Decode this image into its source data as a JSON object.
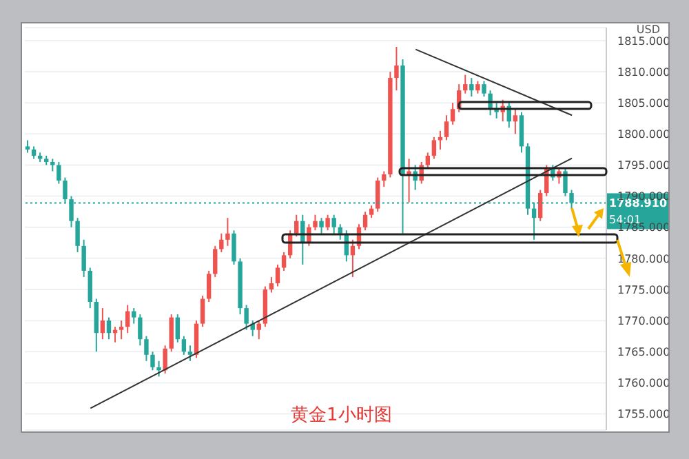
{
  "chart_data": {
    "type": "candlestick",
    "title": "黄金1小时图",
    "annotations": [
      "USD",
      "54:01"
    ],
    "categories": [
      null,
      null,
      null,
      null,
      null,
      null,
      null,
      null,
      null,
      null,
      null,
      null,
      null,
      null,
      null,
      null,
      null,
      null,
      null,
      null,
      null,
      null,
      null,
      null,
      null,
      null,
      null,
      null,
      null,
      null,
      null,
      null,
      null,
      null,
      null,
      null,
      null,
      null,
      null,
      null,
      null,
      null,
      null,
      null,
      null,
      null,
      null,
      null,
      null,
      null,
      null,
      null,
      null,
      null,
      null,
      null,
      null,
      null,
      null,
      null,
      null,
      null,
      null,
      null,
      null,
      null,
      null,
      null,
      null,
      null,
      null,
      null,
      null,
      null,
      null,
      null,
      null,
      null,
      null,
      null,
      null,
      null,
      null,
      null,
      null,
      null,
      null,
      null
    ],
    "ohlc": [
      [
        1798,
        1799,
        1797,
        1797.5
      ],
      [
        1797.5,
        1798,
        1796,
        1796.5
      ],
      [
        1796.5,
        1797,
        1795.5,
        1796
      ],
      [
        1796,
        1796.5,
        1795,
        1795.5
      ],
      [
        1795.5,
        1796,
        1794,
        1795
      ],
      [
        1795,
        1795.5,
        1792,
        1792.5
      ],
      [
        1792.5,
        1793,
        1789,
        1789.5
      ],
      [
        1789.5,
        1790,
        1785,
        1786
      ],
      [
        1786,
        1786.5,
        1781,
        1782
      ],
      [
        1782,
        1783,
        1777,
        1778
      ],
      [
        1778,
        1778.5,
        1772,
        1773
      ],
      [
        1773,
        1773.5,
        1765,
        1768
      ],
      [
        1768,
        1772,
        1767,
        1770
      ],
      [
        1770,
        1770.5,
        1767,
        1768
      ],
      [
        1768,
        1769,
        1766.5,
        1768.5
      ],
      [
        1768.5,
        1770,
        1767,
        1769
      ],
      [
        1769,
        1772.5,
        1768,
        1771.5
      ],
      [
        1771.5,
        1772,
        1769.5,
        1770.5
      ],
      [
        1770.5,
        1771,
        1766,
        1767
      ],
      [
        1767,
        1767.5,
        1763.5,
        1764.5
      ],
      [
        1764.5,
        1765,
        1762,
        1762.5
      ],
      [
        1762.5,
        1763.5,
        1761,
        1762
      ],
      [
        1762,
        1766,
        1761.5,
        1765.5
      ],
      [
        1765.5,
        1771,
        1765,
        1770.5
      ],
      [
        1770.5,
        1771,
        1766.5,
        1767
      ],
      [
        1767,
        1767.5,
        1764.5,
        1765
      ],
      [
        1765,
        1766,
        1763.5,
        1764.5
      ],
      [
        1764.5,
        1770,
        1764,
        1769.5
      ],
      [
        1769.5,
        1774,
        1769,
        1773.5
      ],
      [
        1773.5,
        1778,
        1773,
        1777.5
      ],
      [
        1777.5,
        1782,
        1777,
        1781.5
      ],
      [
        1781.5,
        1784,
        1781,
        1783
      ],
      [
        1783,
        1786.5,
        1782,
        1784
      ],
      [
        1784,
        1784.5,
        1779,
        1779.5
      ],
      [
        1779.5,
        1780,
        1771,
        1772
      ],
      [
        1772,
        1772.5,
        1768.5,
        1769.5
      ],
      [
        1769.5,
        1770,
        1767.5,
        1768.5
      ],
      [
        1768.5,
        1770,
        1767,
        1769.5
      ],
      [
        1769.5,
        1775.5,
        1769,
        1775
      ],
      [
        1775,
        1777,
        1774.5,
        1776
      ],
      [
        1776,
        1779,
        1775.5,
        1778.5
      ],
      [
        1778.5,
        1781,
        1778,
        1780.5
      ],
      [
        1780.5,
        1784.5,
        1780,
        1784
      ],
      [
        1784,
        1787,
        1783.5,
        1786
      ],
      [
        1786,
        1787,
        1779,
        1782.5
      ],
      [
        1782.5,
        1785.5,
        1782,
        1785
      ],
      [
        1785,
        1787,
        1784.5,
        1786
      ],
      [
        1786,
        1786.5,
        1784,
        1785
      ],
      [
        1785,
        1787,
        1784.5,
        1786.5
      ],
      [
        1786.5,
        1787,
        1784,
        1785
      ],
      [
        1785,
        1785.5,
        1783,
        1784
      ],
      [
        1784,
        1784.5,
        1779.5,
        1780.5
      ],
      [
        1780.5,
        1783,
        1777,
        1782
      ],
      [
        1782,
        1785.5,
        1781.5,
        1785
      ],
      [
        1785,
        1787.5,
        1784.5,
        1787
      ],
      [
        1787,
        1788.5,
        1786.5,
        1788
      ],
      [
        1788,
        1793,
        1787.5,
        1792.5
      ],
      [
        1792.5,
        1794,
        1791.5,
        1793.5
      ],
      [
        1793.5,
        1810,
        1793,
        1809
      ],
      [
        1809,
        1814,
        1807,
        1811
      ],
      [
        1811,
        1812,
        1784,
        1793.5
      ],
      [
        1793.5,
        1796,
        1789,
        1794
      ],
      [
        1794,
        1795,
        1791,
        1792.5
      ],
      [
        1792.5,
        1795.5,
        1792,
        1795
      ],
      [
        1795,
        1797,
        1794.5,
        1796.5
      ],
      [
        1796.5,
        1799.5,
        1796,
        1799
      ],
      [
        1799,
        1800.5,
        1797.5,
        1799.5
      ],
      [
        1799.5,
        1803,
        1799,
        1802
      ],
      [
        1802,
        1805,
        1801.5,
        1804
      ],
      [
        1804,
        1808,
        1803.5,
        1807
      ],
      [
        1807,
        1809.5,
        1806.5,
        1808
      ],
      [
        1808,
        1809,
        1806,
        1807
      ],
      [
        1807,
        1808.5,
        1806.5,
        1808
      ],
      [
        1808,
        1808.5,
        1806,
        1806.5
      ],
      [
        1806.5,
        1807,
        1803,
        1804
      ],
      [
        1804,
        1805,
        1802.5,
        1803.5
      ],
      [
        1803.5,
        1805.5,
        1802,
        1804.5
      ],
      [
        1804.5,
        1805,
        1801,
        1802
      ],
      [
        1802,
        1804,
        1800,
        1803
      ],
      [
        1803,
        1803.5,
        1797,
        1798
      ],
      [
        1798,
        1798.5,
        1787,
        1788
      ],
      [
        1788,
        1789,
        1783,
        1786.5
      ],
      [
        1786.5,
        1791,
        1786,
        1790.5
      ],
      [
        1790.5,
        1795,
        1790,
        1794.5
      ],
      [
        1794.5,
        1795,
        1792.5,
        1793
      ],
      [
        1793,
        1794.5,
        1792,
        1794
      ],
      [
        1794,
        1794.5,
        1790,
        1790.5
      ],
      [
        1790.5,
        1791,
        1788,
        1788.91
      ]
    ],
    "colors": [
      "#26a69a",
      "#26a69a",
      "#26a69a",
      "#26a69a",
      "#26a69a",
      "#26a69a",
      "#26a69a",
      "#26a69a",
      "#26a69a",
      "#26a69a",
      "#26a69a",
      "#26a69a",
      "#ef5350",
      "#26a69a",
      "#ef5350",
      "#ef5350",
      "#ef5350",
      "#26a69a",
      "#26a69a",
      "#26a69a",
      "#26a69a",
      "#26a69a",
      "#ef5350",
      "#ef5350",
      "#26a69a",
      "#26a69a",
      "#26a69a",
      "#ef5350",
      "#ef5350",
      "#ef5350",
      "#ef5350",
      "#ef5350",
      "#ef5350",
      "#26a69a",
      "#26a69a",
      "#26a69a",
      "#26a69a",
      "#ef5350",
      "#ef5350",
      "#ef5350",
      "#ef5350",
      "#ef5350",
      "#ef5350",
      "#ef5350",
      "#26a69a",
      "#ef5350",
      "#ef5350",
      "#26a69a",
      "#ef5350",
      "#26a69a",
      "#26a69a",
      "#26a69a",
      "#ef5350",
      "#ef5350",
      "#ef5350",
      "#ef5350",
      "#ef5350",
      "#ef5350",
      "#ef5350",
      "#ef5350",
      "#26a69a",
      "#ef5350",
      "#26a69a",
      "#ef5350",
      "#ef5350",
      "#ef5350",
      "#ef5350",
      "#ef5350",
      "#ef5350",
      "#ef5350",
      "#ef5350",
      "#26a69a",
      "#ef5350",
      "#26a69a",
      "#26a69a",
      "#26a69a",
      "#ef5350",
      "#26a69a",
      "#ef5350",
      "#26a69a",
      "#26a69a",
      "#26a69a",
      "#ef5350",
      "#ef5350",
      "#26a69a",
      "#ef5350",
      "#26a69a",
      "#26a69a"
    ],
    "ylim": [
      1752.4,
      1817.1
    ],
    "yticks": [
      {
        "value": 1755,
        "label": "1755.000"
      },
      {
        "value": 1760,
        "label": "1760.000"
      },
      {
        "value": 1765,
        "label": "1765.000"
      },
      {
        "value": 1770,
        "label": "1770.000"
      },
      {
        "value": 1775,
        "label": "1775.000"
      },
      {
        "value": 1780,
        "label": "1780.000"
      },
      {
        "value": 1785,
        "label": "1785.000"
      },
      {
        "value": 1790,
        "label": "1790.000"
      },
      {
        "value": 1795,
        "label": "1795.000"
      },
      {
        "value": 1800,
        "label": "1800.000"
      },
      {
        "value": 1805,
        "label": "1805.000"
      },
      {
        "value": 1810,
        "label": "1810.000"
      },
      {
        "value": 1815,
        "label": "1815.000"
      }
    ],
    "ref_lines": [
      {
        "axis": "y",
        "value": 1788.91,
        "label": "1788.910",
        "color": "#26a69a",
        "line_style": "dotted"
      }
    ],
    "series": [
      {
        "type": "line",
        "color": "#333333",
        "values": [
          null,
          null,
          null,
          null,
          null,
          null,
          null,
          null,
          null,
          null,
          1755.9,
          null,
          null,
          null,
          null,
          null,
          null,
          null,
          null,
          null,
          null,
          null,
          null,
          null,
          null,
          null,
          null,
          null,
          null,
          null,
          null,
          null,
          null,
          null,
          null,
          null,
          null,
          null,
          null,
          null,
          null,
          null,
          null,
          null,
          null,
          null,
          null,
          null,
          null,
          null,
          null,
          null,
          null,
          null,
          null,
          null,
          null,
          null,
          null,
          null,
          null,
          null,
          null,
          null,
          null,
          null,
          null,
          null,
          null,
          null,
          null,
          null,
          null,
          null,
          null,
          null,
          null,
          null,
          null,
          null,
          null,
          null,
          null,
          null,
          null,
          null,
          null,
          1796.1
        ]
      },
      {
        "type": "line",
        "color": "#333333",
        "values": [
          null,
          null,
          null,
          null,
          null,
          null,
          null,
          null,
          null,
          null,
          null,
          null,
          null,
          null,
          null,
          null,
          null,
          null,
          null,
          null,
          null,
          null,
          null,
          null,
          null,
          null,
          null,
          null,
          null,
          null,
          null,
          null,
          null,
          null,
          null,
          null,
          null,
          null,
          null,
          null,
          null,
          null,
          null,
          null,
          null,
          null,
          null,
          null,
          null,
          null,
          null,
          null,
          null,
          null,
          null,
          null,
          null,
          null,
          null,
          null,
          null,
          null,
          1813.6,
          null,
          null,
          null,
          null,
          null,
          null,
          null,
          null,
          null,
          null,
          null,
          null,
          null,
          null,
          null,
          null,
          null,
          null,
          null,
          null,
          null,
          null,
          null,
          null,
          1803.0
        ]
      }
    ],
    "marker": "none",
    "line_style": "solid",
    "grid": "y",
    "legend": false,
    "tick_labels": "y"
  }
}
